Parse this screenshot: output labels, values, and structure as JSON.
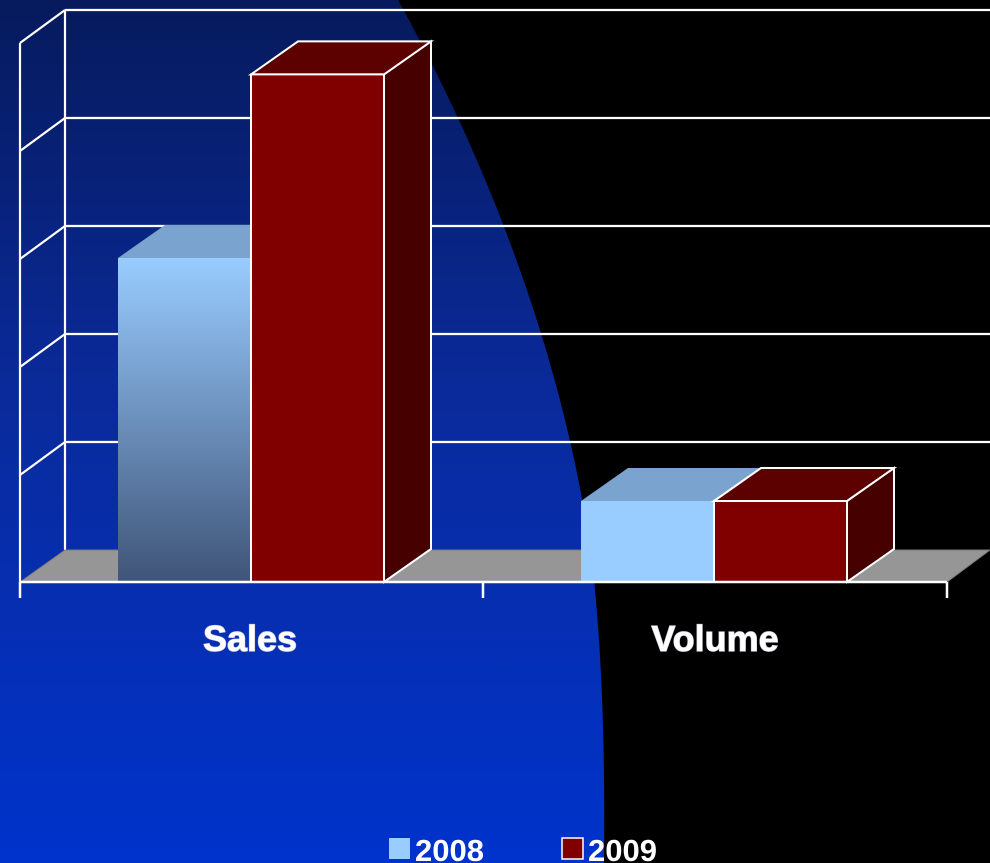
{
  "chart_data": {
    "type": "bar",
    "title": "",
    "xlabel": "",
    "ylabel": "",
    "categories": [
      "Sales",
      "Volume"
    ],
    "series": [
      {
        "name": "2008",
        "values": [
          60,
          15
        ]
      },
      {
        "name": "2009",
        "values": [
          94,
          15
        ]
      }
    ],
    "ylim": [
      0,
      100
    ],
    "grid": true,
    "legend_position": "bottom",
    "colors": {
      "series_2008": "#99ccff",
      "series_2009": "#800000",
      "background_left": "#0033cc",
      "background_right": "#000000",
      "floor": "#969696",
      "gridlines": "#ffffff"
    }
  }
}
